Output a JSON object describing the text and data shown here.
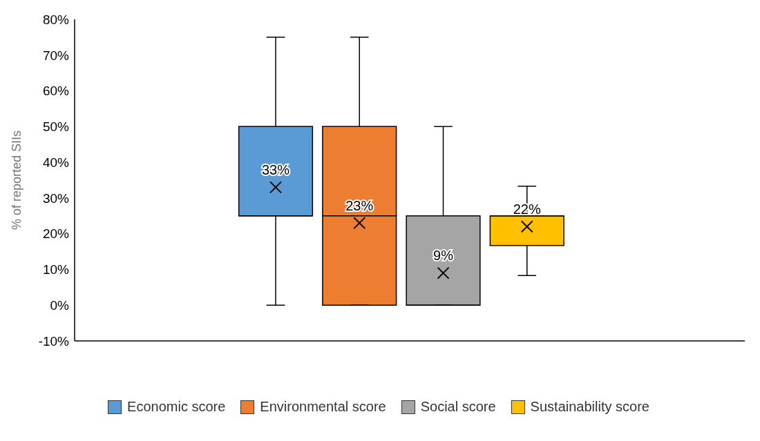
{
  "chart_data": {
    "type": "box",
    "ylabel": "% of reported SIIs",
    "categories": [
      null
    ],
    "ylim": [
      -10,
      80
    ],
    "yticks": [
      {
        "value": -10,
        "label": "-10%"
      },
      {
        "value": 0,
        "label": "0%"
      },
      {
        "value": 10,
        "label": "10%"
      },
      {
        "value": 20,
        "label": "20%"
      },
      {
        "value": 30,
        "label": "30%"
      },
      {
        "value": 40,
        "label": "40%"
      },
      {
        "value": 50,
        "label": "50%"
      },
      {
        "value": 60,
        "label": "60%"
      },
      {
        "value": 70,
        "label": "70%"
      },
      {
        "value": 80,
        "label": "80%"
      }
    ],
    "grid": false,
    "legend": "bottom",
    "marker": "cross",
    "series": [
      {
        "name": "Economic score",
        "color": "#5b9bd5",
        "boxes": [
          {
            "low": 0,
            "q1": 25,
            "median": 25,
            "q3": 50,
            "high": 75,
            "mean": 33
          }
        ],
        "value_labels": [
          "33%"
        ]
      },
      {
        "name": "Environmental score",
        "color": "#ed7d31",
        "boxes": [
          {
            "low": 0,
            "q1": 0,
            "median": 25,
            "q3": 50,
            "high": 75,
            "mean": 23
          }
        ],
        "value_labels": [
          "23%"
        ]
      },
      {
        "name": "Social score",
        "color": "#a5a5a5",
        "boxes": [
          {
            "low": 0,
            "q1": 0,
            "median": 0,
            "q3": 25,
            "high": 50,
            "mean": 9
          }
        ],
        "value_labels": [
          "9%"
        ]
      },
      {
        "name": "Sustainability score",
        "color": "#ffc000",
        "boxes": [
          {
            "low": 8.3,
            "q1": 16.7,
            "median": 25,
            "q3": 25,
            "high": 33.3,
            "mean": 22
          }
        ],
        "value_labels": [
          "22%"
        ]
      }
    ]
  }
}
